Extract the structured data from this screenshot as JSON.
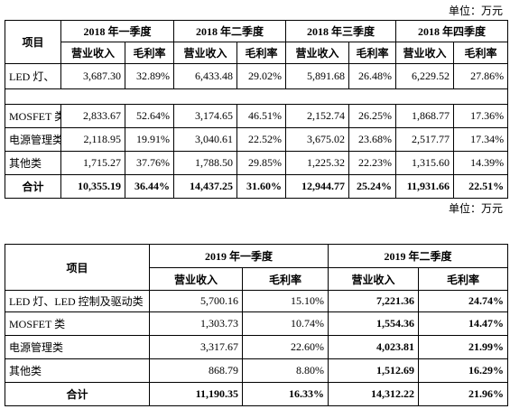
{
  "table1": {
    "unit": "单位：万元",
    "item_header": "项目",
    "periods": [
      "2018 年一季度",
      "2018 年二季度",
      "2018 年三季度",
      "2018 年四季度"
    ],
    "sub_headers": [
      "营业收入",
      "毛利率"
    ],
    "rows": [
      [
        "LED 灯、",
        "3,687.30",
        "32.89%",
        "6,433.48",
        "29.02%",
        "5,891.68",
        "26.48%",
        "6,229.52",
        "27.86%"
      ],
      [
        "MOSFET 类",
        "2,833.67",
        "52.64%",
        "3,174.65",
        "46.51%",
        "2,152.74",
        "26.25%",
        "1,868.77",
        "17.36%"
      ],
      [
        "电源管理类",
        "2,118.95",
        "19.91%",
        "3,040.61",
        "22.52%",
        "3,675.02",
        "23.68%",
        "2,517.77",
        "17.34%"
      ],
      [
        "其他类",
        "1,715.27",
        "37.76%",
        "1,788.50",
        "29.85%",
        "1,225.32",
        "22.23%",
        "1,315.60",
        "14.39%"
      ],
      [
        "合计",
        "10,355.19",
        "36.44%",
        "14,437.25",
        "31.60%",
        "12,944.77",
        "25.24%",
        "11,931.66",
        "22.51%"
      ]
    ]
  },
  "table2": {
    "unit": "单位：万元",
    "item_header": "项目",
    "periods": [
      "2019 年一季度",
      "2019 年二季度"
    ],
    "sub_headers": [
      "营业收入",
      "毛利率"
    ],
    "rows": [
      [
        "LED 灯、LED 控制及驱动类",
        "5,700.16",
        "15.10%",
        "7,221.36",
        "24.74%"
      ],
      [
        "MOSFET 类",
        "1,303.73",
        "10.74%",
        "1,554.36",
        "14.47%"
      ],
      [
        "电源管理类",
        "3,317.67",
        "22.60%",
        "4,023.81",
        "21.99%"
      ],
      [
        "其他类",
        "868.79",
        "8.80%",
        "1,512.69",
        "16.29%"
      ],
      [
        "合计",
        "11,190.35",
        "16.33%",
        "14,312.22",
        "21.96%"
      ]
    ]
  }
}
